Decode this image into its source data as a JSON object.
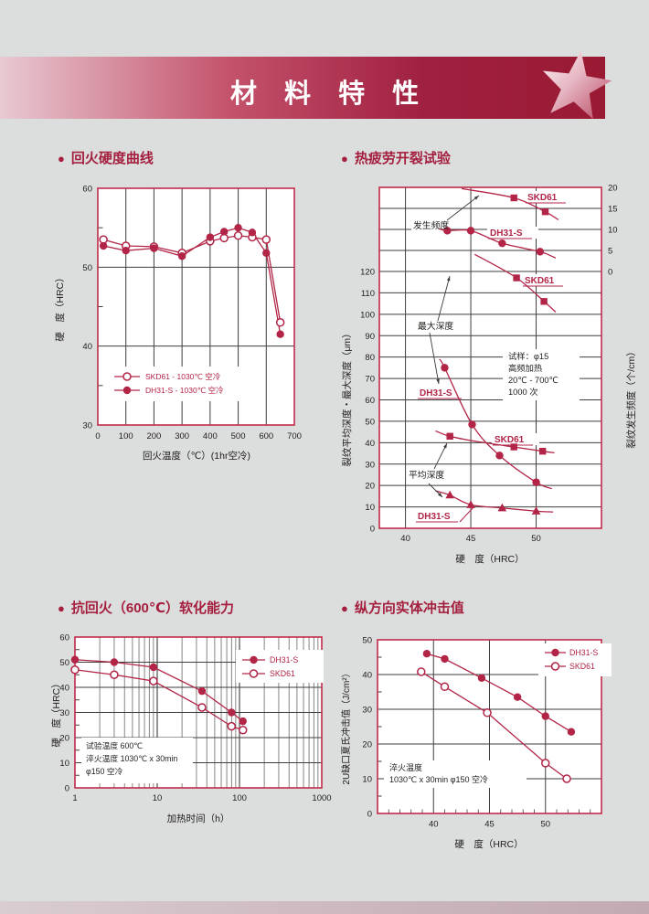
{
  "page": {
    "background": "#dcdddd",
    "accent": "#a41f3e"
  },
  "banner": {
    "title": "材 料 特 性",
    "gradient_left": "#e8c9d2",
    "gradient_right": "#991a33"
  },
  "sections": [
    {
      "title": "回火硬度曲线"
    },
    {
      "title": "热疲劳开裂试验"
    },
    {
      "title": "抗回火（600℃）软化能力"
    },
    {
      "title": "纵方向实体冲击值"
    }
  ],
  "chart_data": [
    {
      "id": "tempering-hardness-curve",
      "type": "line",
      "title": "回火硬度曲线",
      "xlabel": "回火温度（℃）(1hr空冷)",
      "ylabel": "硬　度（HRC）",
      "xlim": [
        0,
        700
      ],
      "ylim": [
        30,
        60
      ],
      "xticks": [
        0,
        100,
        200,
        300,
        400,
        500,
        600,
        700
      ],
      "yticks": [
        30,
        40,
        50,
        60
      ],
      "grid": true,
      "legend_position": "inside-bottom-left",
      "series": [
        {
          "name": "SKD61 - 1030℃ 空冷",
          "marker": "circle-open",
          "x": [
            20,
            100,
            200,
            300,
            400,
            450,
            500,
            550,
            600,
            650
          ],
          "y": [
            53.5,
            52.7,
            52.6,
            51.8,
            53.3,
            53.7,
            54.0,
            53.8,
            53.5,
            43.0
          ]
        },
        {
          "name": "DH31-S - 1030℃ 空冷",
          "marker": "circle-filled",
          "x": [
            20,
            100,
            200,
            300,
            400,
            450,
            500,
            550,
            600,
            650
          ],
          "y": [
            52.7,
            52.1,
            52.4,
            51.4,
            53.8,
            54.5,
            55.0,
            54.4,
            51.8,
            41.5
          ]
        }
      ]
    },
    {
      "id": "thermal-fatigue-cracking-test",
      "type": "line",
      "title": "热疲劳开裂试验",
      "xlabel": "硬　度（HRC）",
      "ylabel_left": "裂纹平均深度・最大深度（μm）",
      "ylabel_right": "裂纹发生频度（个/cm）",
      "xlim": [
        38,
        55
      ],
      "xticks": [
        40,
        45,
        50
      ],
      "left_axis": {
        "range": [
          0,
          120
        ],
        "ticks": [
          0,
          10,
          20,
          30,
          40,
          50,
          60,
          70,
          80,
          90,
          100,
          110,
          120
        ]
      },
      "right_axis": {
        "range": [
          0,
          20
        ],
        "ticks": [
          0,
          5,
          10,
          15,
          20
        ]
      },
      "test_conditions": [
        "试样：φ15",
        "高频加热",
        "20℃ - 700℃",
        "1000 次"
      ],
      "annotations": [
        {
          "text": "发生频度"
        },
        {
          "text": "最大深度"
        },
        {
          "text": "平均深度"
        }
      ],
      "series": [
        {
          "name": "SKD61",
          "group": "发生频度",
          "axis": "right",
          "marker": "square-filled",
          "x": [
            48.3,
            50.7
          ],
          "y": [
            17.5,
            14.2
          ],
          "trend_x": [
            44.3,
            48.3,
            50.7,
            51.7
          ],
          "trend_y": [
            19.7,
            17.5,
            14.2,
            12.3
          ]
        },
        {
          "name": "DH31-S",
          "group": "发生频度",
          "axis": "right",
          "marker": "circle-filled",
          "x": [
            43.2,
            45.0,
            47.4,
            50.3
          ],
          "y": [
            9.7,
            9.7,
            6.7,
            4.7
          ],
          "trend_x": [
            42.5,
            43.2,
            45.0,
            47.4,
            50.3,
            51.5
          ],
          "trend_y": [
            10.2,
            9.7,
            9.7,
            6.7,
            4.7,
            3.2
          ]
        },
        {
          "name": "SKD61",
          "group": "最大深度",
          "axis": "left",
          "marker": "square-filled",
          "x": [
            48.5,
            50.6
          ],
          "y": [
            117,
            106
          ],
          "trend_x": [
            45.3,
            48.5,
            50.6,
            51.5
          ],
          "trend_y": [
            128,
            117,
            106,
            101
          ]
        },
        {
          "name": "DH31-S",
          "group": "最大深度",
          "axis": "left",
          "marker": "circle-filled",
          "x": [
            43.0,
            45.1,
            47.2,
            50.0
          ],
          "y": [
            75,
            48.5,
            34,
            21.5
          ],
          "trend_x": [
            42.6,
            43.0,
            45.1,
            47.2,
            50.0,
            51.2
          ],
          "trend_y": [
            79,
            75,
            48.5,
            34,
            21.5,
            18.5
          ]
        },
        {
          "name": "SKD61",
          "group": "平均深度",
          "axis": "left",
          "marker": "square-filled",
          "x": [
            43.4,
            48.3,
            50.5
          ],
          "y": [
            43,
            38,
            36
          ],
          "trend_x": [
            42.3,
            43.4,
            45.5,
            48.3,
            50.5,
            51.4
          ],
          "trend_y": [
            45.5,
            43,
            40.5,
            38,
            36,
            35.3
          ]
        },
        {
          "name": "DH31-S",
          "group": "平均深度",
          "axis": "left",
          "marker": "triangle-filled",
          "x": [
            43.4,
            45.0,
            47.4,
            50.0
          ],
          "y": [
            15.5,
            11,
            9.5,
            8
          ],
          "trend_x": [
            42.3,
            43.4,
            45.0,
            47.4,
            50.0,
            51.3
          ],
          "trend_y": [
            17.5,
            15.5,
            11,
            9.5,
            8,
            7.6
          ]
        }
      ]
    },
    {
      "id": "temper-softening-resistance-600c",
      "type": "line",
      "title": "抗回火（600℃）软化能力",
      "xlabel": "加热时间（h）",
      "ylabel": "硬　度（HRC）",
      "xscale": "log",
      "xlim": [
        1,
        1000
      ],
      "ylim": [
        0,
        60
      ],
      "xticks": [
        1,
        10,
        100,
        1000
      ],
      "yticks": [
        0,
        10,
        20,
        30,
        40,
        50,
        60
      ],
      "test_conditions": [
        "试验温度 600℃",
        "淬火温度 1030℃ x 30min",
        "φ150 空冷"
      ],
      "series": [
        {
          "name": "DH31-S",
          "marker": "circle-filled",
          "x": [
            1,
            3,
            9,
            35,
            80,
            110
          ],
          "y": [
            51,
            50,
            48,
            38.5,
            30,
            26.5
          ]
        },
        {
          "name": "SKD61",
          "marker": "circle-open",
          "x": [
            1,
            3,
            9,
            35,
            80,
            110
          ],
          "y": [
            47,
            45,
            42.5,
            32,
            24.5,
            23
          ]
        }
      ]
    },
    {
      "id": "longitudinal-solid-impact-value",
      "type": "line",
      "title": "纵方向实体冲击值",
      "xlabel": "硬　度（HRC）",
      "ylabel": "2U缺口夏氏冲击值（J/cm²）",
      "xlim": [
        35,
        55
      ],
      "ylim": [
        0,
        50
      ],
      "xticks": [
        40,
        45,
        50
      ],
      "yticks": [
        0,
        10,
        20,
        30,
        40,
        50
      ],
      "test_conditions": [
        "淬火温度",
        "1030℃ x 30min φ150 空冷"
      ],
      "series": [
        {
          "name": "DH31-S",
          "marker": "circle-filled",
          "x": [
            39.4,
            41.0,
            44.3,
            47.5,
            50.0,
            52.3
          ],
          "y": [
            46,
            44.5,
            39,
            33.5,
            28,
            23.5
          ]
        },
        {
          "name": "SKD61",
          "marker": "circle-open",
          "x": [
            38.9,
            41.0,
            44.8,
            50.0,
            51.9
          ],
          "y": [
            40.8,
            36.5,
            29,
            14.5,
            10
          ]
        }
      ]
    }
  ]
}
